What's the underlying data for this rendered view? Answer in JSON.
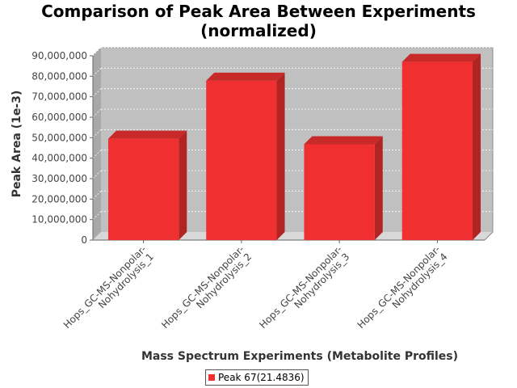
{
  "chart_data": {
    "type": "bar",
    "title_line1": "Comparison of Peak Area Between Experiments",
    "title_line2": "(normalized)",
    "xlabel": "Mass Spectrum Experiments (Metabolite Profiles)",
    "ylabel": "Peak Area (1e-3)",
    "categories": [
      "Hops_GC-MS-Nonpolar-Nohydrolysis_1",
      "Hops_GC-MS-Nonpolar-Nohydrolysis_2",
      "Hops_GC-MS-Nonpolar-Nohydrolysis_3",
      "Hops_GC-MS-Nonpolar-Nohydrolysis_4"
    ],
    "category_lines": [
      [
        "Hops_GC-MS-Nonpolar-",
        "Nohydrolysis_1"
      ],
      [
        "Hops_GC-MS-Nonpolar-",
        "Nohydrolysis_2"
      ],
      [
        "Hops_GC-MS-Nonpolar-",
        "Nohydrolysis_3"
      ],
      [
        "Hops_GC-MS-Nonpolar-",
        "Nohydrolysis_4"
      ]
    ],
    "series": [
      {
        "name": "Peak 67(21.4836)",
        "color": "#f03030",
        "values": [
          49500000,
          77800000,
          46800000,
          87000000
        ]
      }
    ],
    "ylim": [
      0,
      90000000
    ],
    "yticks": [
      0,
      10000000,
      20000000,
      30000000,
      40000000,
      50000000,
      60000000,
      70000000,
      80000000,
      90000000
    ],
    "ytick_labels": [
      "0",
      "10,000,000",
      "20,000,000",
      "30,000,000",
      "40,000,000",
      "50,000,000",
      "60,000,000",
      "70,000,000",
      "80,000,000",
      "90,000,000"
    ],
    "grid": true,
    "legend_position": "bottom-center",
    "plot_background": "#c0c0c0"
  }
}
